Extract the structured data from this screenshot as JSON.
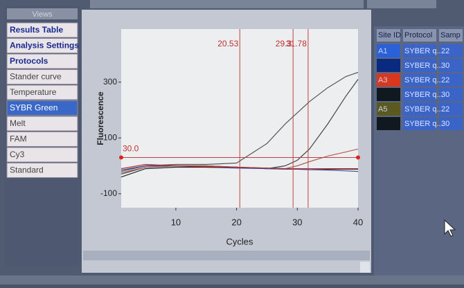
{
  "views": {
    "title": "Views",
    "items": [
      "Results Table",
      "Analysis Settings",
      "Protocols",
      "Stander curve",
      "Temperature",
      "SYBR Green",
      "Melt",
      "FAM",
      "Cy3",
      "Standard"
    ],
    "selected": 5,
    "links": [
      0,
      1,
      2
    ]
  },
  "chart": {
    "type": "line",
    "y_label": "Fluorescence",
    "x_label": "Cycles",
    "xlim": [
      1,
      40
    ],
    "xticks": [
      10,
      20,
      30,
      40
    ],
    "ylim": [
      -150,
      490
    ],
    "yticks": [
      300,
      100,
      -100
    ],
    "threshold": {
      "value": 30,
      "label": "30.0"
    },
    "ct_lines": [
      20.53,
      29.3,
      31.78
    ],
    "x": [
      1,
      5,
      10,
      15,
      20,
      25,
      28,
      30,
      32,
      35,
      38,
      40
    ],
    "series": [
      {
        "color": "#555555",
        "values": [
          -20,
          0,
          5,
          5,
          10,
          80,
          150,
          190,
          230,
          280,
          320,
          335
        ]
      },
      {
        "color": "#444444",
        "values": [
          -30,
          -5,
          0,
          0,
          -5,
          -10,
          0,
          20,
          60,
          150,
          250,
          310
        ]
      },
      {
        "color": "#b06050",
        "values": [
          -25,
          -5,
          0,
          0,
          -5,
          -10,
          -10,
          0,
          15,
          35,
          50,
          60
        ]
      },
      {
        "color": "#3050a0",
        "values": [
          -15,
          0,
          0,
          -5,
          -8,
          -10,
          -12,
          -12,
          -14,
          -15,
          -18,
          -20
        ]
      },
      {
        "color": "#222222",
        "values": [
          -40,
          -10,
          -5,
          -5,
          -5,
          -8,
          -10,
          -10,
          -10,
          -12,
          -12,
          -12
        ]
      },
      {
        "color": "#c03030",
        "values": [
          -10,
          5,
          0,
          -3,
          -5,
          -8,
          -10,
          -10,
          -10,
          -10,
          -10,
          -10
        ]
      }
    ]
  },
  "table": {
    "headers": [
      "Site ID",
      "Protocol",
      "Samp"
    ],
    "rows": [
      {
        "site": "A1",
        "protocol": "SYBER q...",
        "sample": "22",
        "color": "#2a60d8"
      },
      {
        "site": null,
        "protocol": "SYBER q...",
        "sample": "30",
        "color": "#0a2a80"
      },
      {
        "site": "A3",
        "protocol": "SYBER q...",
        "sample": "22",
        "color": "#d83820"
      },
      {
        "site": null,
        "protocol": "SYBER q...",
        "sample": "30",
        "color": "#101820"
      },
      {
        "site": "A5",
        "protocol": "SYBER q...",
        "sample": "22",
        "color": "#5a5a20"
      },
      {
        "site": null,
        "protocol": "SYBER q...",
        "sample": "30",
        "color": "#101820"
      }
    ]
  }
}
